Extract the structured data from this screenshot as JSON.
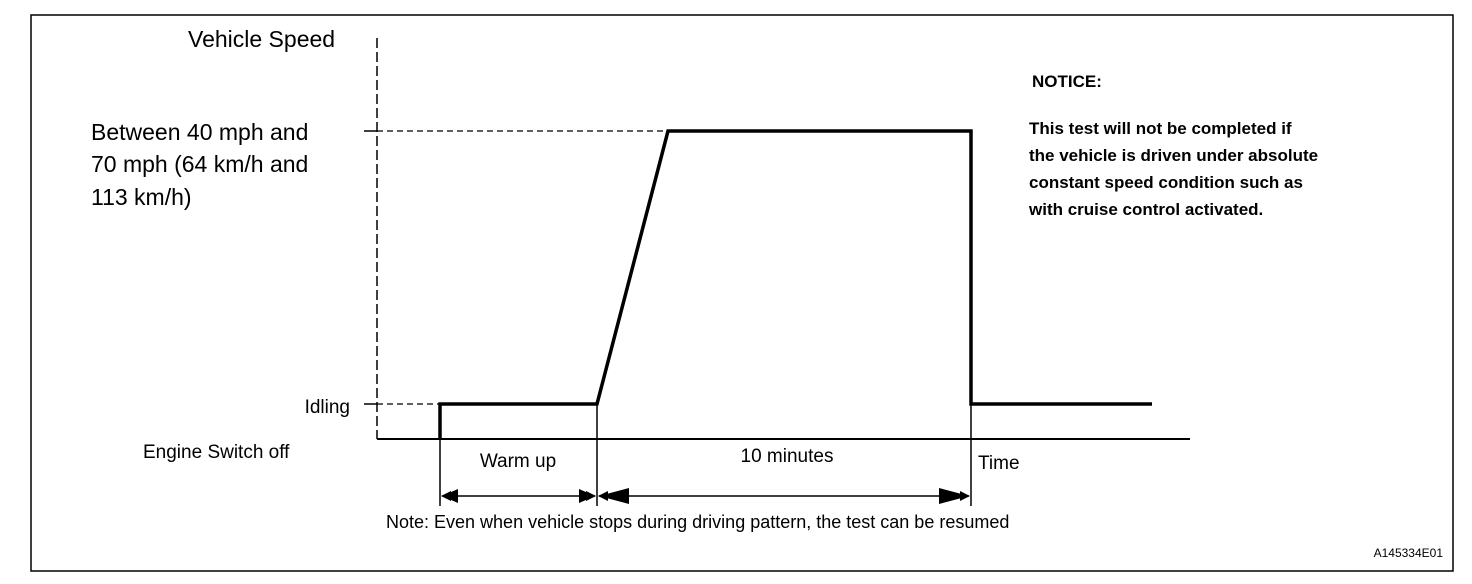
{
  "diagram": {
    "y_axis_label": "Vehicle Speed",
    "speed_level_lines": [
      "Between 40 mph and",
      "70 mph (64 km/h and",
      "113 km/h)"
    ],
    "idle_label": "Idling",
    "engine_off_label": "Engine Switch off",
    "warmup_label": "Warm up",
    "duration_label": "10 minutes",
    "x_axis_label": "Time",
    "note": "Note: Even when vehicle stops during driving pattern, the test can be resumed",
    "notice": {
      "title": "NOTICE:",
      "lines": [
        "This test will not be completed if",
        "the vehicle is driven under absolute",
        "constant speed condition such as",
        "with cruise control activated."
      ]
    },
    "figure_id": "A145334E01"
  }
}
